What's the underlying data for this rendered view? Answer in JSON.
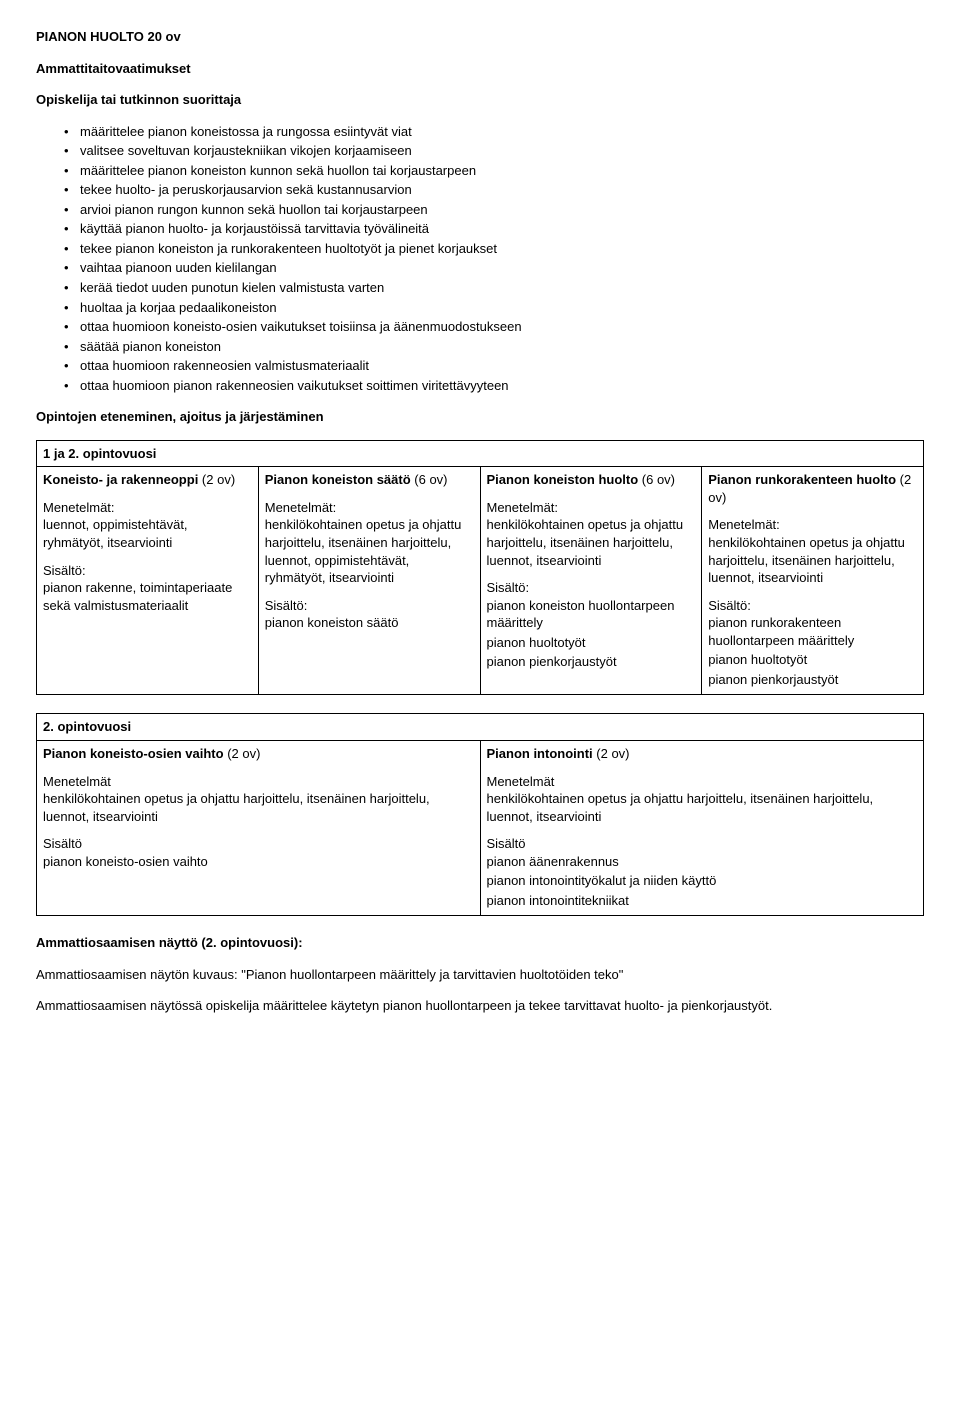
{
  "title": "PIANON HUOLTO 20 ov",
  "section1_heading": "Ammattitaitovaatimukset",
  "section1_sub": "Opiskelija tai tutkinnon suorittaja",
  "bullets": [
    "määrittelee pianon koneistossa ja rungossa esiintyvät viat",
    "valitsee soveltuvan korjaustekniikan vikojen korjaamiseen",
    "määrittelee pianon koneiston kunnon sekä huollon tai korjaustarpeen",
    "tekee huolto- ja peruskorjausarvion sekä kustannusarvion",
    "arvioi pianon rungon kunnon sekä huollon tai korjaustarpeen",
    "käyttää pianon huolto- ja korjaustöissä tarvittavia työvälineitä",
    "tekee pianon koneiston ja runkorakenteen huoltotyöt ja pienet korjaukset",
    "vaihtaa pianoon uuden kielilangan",
    "kerää tiedot uuden punotun kielen valmistusta varten",
    "huoltaa ja korjaa pedaalikoneiston",
    "ottaa huomioon koneisto-osien vaikutukset toisiinsa ja äänenmuodostukseen",
    "säätää pianon koneiston",
    "ottaa huomioon rakenneosien valmistusmateriaalit",
    "ottaa huomioon pianon rakenneosien vaikutukset soittimen viritettävyyteen"
  ],
  "section2_heading": "Opintojen eteneminen, ajoitus ja järjestäminen",
  "table1": {
    "header": "1 ja 2. opintovuosi",
    "cols": [
      {
        "title_bold": "Koneisto- ja rakenneoppi",
        "title_rest": " (2 ov)",
        "m_label": "Menetelmät:",
        "m_text": "luennot, oppimistehtävät, ryhmätyöt, itsearviointi",
        "s_label": "Sisältö:",
        "s_lines": [
          "pianon rakenne, toimintaperiaate sekä valmistusmateriaalit"
        ]
      },
      {
        "title_bold": "Pianon koneiston säätö",
        "title_rest": " (6 ov)",
        "m_label": "Menetelmät:",
        "m_text": "henkilökohtainen opetus ja ohjattu harjoittelu, itsenäinen harjoittelu, luennot, oppimistehtävät, ryhmätyöt, itsearviointi",
        "s_label": "Sisältö:",
        "s_lines": [
          "pianon koneiston säätö"
        ]
      },
      {
        "title_bold": "Pianon koneiston huolto",
        "title_rest": " (6 ov)",
        "m_label": "Menetelmät:",
        "m_text": "henkilökohtainen opetus ja ohjattu harjoittelu, itsenäinen harjoittelu, luennot, itsearviointi",
        "s_label": "Sisältö:",
        "s_lines": [
          "pianon koneiston huollontarpeen määrittely",
          "pianon huoltotyöt",
          "pianon pienkorjaustyöt"
        ]
      },
      {
        "title_bold": "Pianon runkorakenteen huolto",
        "title_rest": " (2 ov)",
        "m_label": "Menetelmät:",
        "m_text": "henkilökohtainen opetus ja ohjattu harjoittelu, itsenäinen harjoittelu, luennot, itsearviointi",
        "s_label": "Sisältö:",
        "s_lines": [
          "pianon runkorakenteen huollontarpeen määrittely",
          "pianon huoltotyöt",
          "pianon pienkorjaustyöt"
        ]
      }
    ]
  },
  "table2": {
    "header": "2. opintovuosi",
    "cols": [
      {
        "title_bold": "Pianon koneisto-osien vaihto",
        "title_rest": " (2 ov)",
        "m_label": "Menetelmät",
        "m_text": "henkilökohtainen opetus ja ohjattu harjoittelu, itsenäinen harjoittelu, luennot, itsearviointi",
        "s_label": "Sisältö",
        "s_lines": [
          "pianon koneisto-osien vaihto"
        ]
      },
      {
        "title_bold": "Pianon intonointi",
        "title_rest": " (2 ov)",
        "m_label": "Menetelmät",
        "m_text": "henkilökohtainen opetus ja ohjattu harjoittelu, itsenäinen harjoittelu, luennot, itsearviointi",
        "s_label": "Sisältö",
        "s_lines": [
          "pianon äänenrakennus",
          "pianon intonointityökalut ja niiden käyttö",
          "pianon intonointitekniikat"
        ]
      }
    ]
  },
  "section3_heading": "Ammattiosaamisen näyttö (2. opintovuosi):",
  "section3_p1_a": "Ammattiosaamisen näytön kuvaus: ",
  "section3_p1_b": "\"Pianon huollontarpeen määrittely ja tarvittavien huoltotöiden teko\"",
  "section3_p2": "Ammattiosaamisen näytössä opiskelija määrittelee käytetyn pianon huollontarpeen ja tekee tarvittavat huolto- ja pienkorjaustyöt."
}
